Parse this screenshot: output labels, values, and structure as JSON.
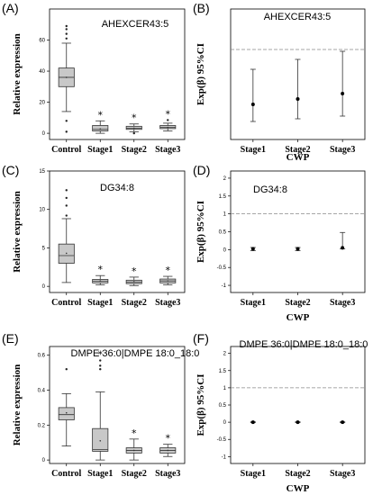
{
  "chart_data": [
    {
      "panel": "(A)",
      "type": "box",
      "title": "AHEXCER43:5",
      "xlabel": "",
      "ylabel": "Relative expression",
      "ylim": [
        -4,
        80
      ],
      "yticks": [
        0,
        20,
        40,
        60
      ],
      "categories": [
        "Control",
        "Stage1",
        "Stage2",
        "Stage3"
      ],
      "boxes": [
        {
          "min": 14,
          "q1": 30,
          "median": 36,
          "q3": 42,
          "max": 58,
          "mean": 36,
          "outliers": [
            1,
            8,
            61,
            64,
            67,
            69
          ],
          "star": ""
        },
        {
          "min": 0,
          "q1": 1.5,
          "median": 2.5,
          "q3": 5,
          "max": 8,
          "mean": 2.8,
          "outliers": [],
          "star": "*"
        },
        {
          "min": 1,
          "q1": 2.5,
          "median": 3.3,
          "q3": 4.5,
          "max": 6,
          "mean": 3.3,
          "outliers": [
            0
          ],
          "star": "*"
        },
        {
          "min": 1.5,
          "q1": 3,
          "median": 3.8,
          "q3": 5,
          "max": 6.5,
          "mean": 3.8,
          "outliers": [
            8.5
          ],
          "star": "*"
        }
      ]
    },
    {
      "panel": "(B)",
      "type": "errorbar",
      "title": "AHEXCER43:5",
      "xlabel": "CWP",
      "ylabel": "Exp(β) 95%CI",
      "ylim": [
        0,
        1.45
      ],
      "yticks": [],
      "refline": 1,
      "categories": [
        "Stage1",
        "Stage2",
        "Stage3"
      ],
      "points": [
        {
          "est": 0.39,
          "lo": 0.2,
          "hi": 0.78
        },
        {
          "est": 0.45,
          "lo": 0.23,
          "hi": 0.89
        },
        {
          "est": 0.51,
          "lo": 0.26,
          "hi": 0.98
        }
      ]
    },
    {
      "panel": "(C)",
      "type": "box",
      "title": "DG34:8",
      "xlabel": "",
      "ylabel": "Relative expression",
      "ylim": [
        -0.8,
        15
      ],
      "yticks": [
        0,
        5,
        10,
        15
      ],
      "categories": [
        "Control",
        "Stage1",
        "Stage2",
        "Stage3"
      ],
      "boxes": [
        {
          "min": 0.5,
          "q1": 3,
          "median": 4,
          "q3": 5.5,
          "max": 8.8,
          "mean": 4.3,
          "outliers": [
            9.2,
            10.5,
            11.5,
            12.5
          ],
          "star": ""
        },
        {
          "min": 0.2,
          "q1": 0.45,
          "median": 0.65,
          "q3": 0.9,
          "max": 1.4,
          "mean": 0.7,
          "outliers": [],
          "star": "*"
        },
        {
          "min": 0.1,
          "q1": 0.35,
          "median": 0.55,
          "q3": 0.8,
          "max": 1.2,
          "mean": 0.6,
          "outliers": [],
          "star": "*"
        },
        {
          "min": 0.2,
          "q1": 0.45,
          "median": 0.7,
          "q3": 0.95,
          "max": 1.3,
          "mean": 0.7,
          "outliers": [],
          "star": "*"
        }
      ]
    },
    {
      "panel": "(D)",
      "type": "errorbar",
      "title": "DG34:8",
      "xlabel": "CWP",
      "ylabel": "Exp(β) 95%CI",
      "ylim": [
        -1.2,
        2.2
      ],
      "yticks": [
        -1,
        -0.5,
        0,
        0.5,
        1,
        1.5,
        2
      ],
      "refline": 1,
      "categories": [
        "Stage1",
        "Stage2",
        "Stage3"
      ],
      "points": [
        {
          "est": 0.02,
          "lo": -0.03,
          "hi": 0.06
        },
        {
          "est": 0.02,
          "lo": -0.03,
          "hi": 0.06
        },
        {
          "est": 0.05,
          "lo": 0.02,
          "hi": 0.48
        }
      ]
    },
    {
      "panel": "(E)",
      "type": "box",
      "title": "DMPE 36:0|DMPE 18:0_18:0",
      "xlabel": "",
      "ylabel": "Relative expression",
      "ylim": [
        -0.02,
        0.65
      ],
      "yticks": [
        0,
        0.2,
        0.4,
        0.6
      ],
      "categories": [
        "Control",
        "Stage1",
        "Stage2",
        "Stage3"
      ],
      "boxes": [
        {
          "min": 0.08,
          "q1": 0.23,
          "median": 0.26,
          "q3": 0.3,
          "max": 0.38,
          "mean": 0.27,
          "outliers": [
            0.52
          ],
          "star": ""
        },
        {
          "min": 0.0,
          "q1": 0.05,
          "median": 0.06,
          "q3": 0.18,
          "max": 0.39,
          "mean": 0.11,
          "outliers": [
            0.52,
            0.54,
            0.57
          ],
          "star": "*"
        },
        {
          "min": 0.0,
          "q1": 0.04,
          "median": 0.055,
          "q3": 0.07,
          "max": 0.12,
          "mean": 0.055,
          "outliers": [],
          "star": "*"
        },
        {
          "min": 0.02,
          "q1": 0.04,
          "median": 0.055,
          "q3": 0.07,
          "max": 0.09,
          "mean": 0.055,
          "outliers": [],
          "star": "*"
        }
      ]
    },
    {
      "panel": "(F)",
      "type": "errorbar",
      "title": "DMPE 36:0|DMPE 18:0_18:0",
      "xlabel": "CWP",
      "ylabel": "Exp(β) 95%CI",
      "ylim": [
        -1.2,
        2.2
      ],
      "yticks": [
        -1,
        -0.5,
        0,
        0.5,
        1,
        1.5,
        2
      ],
      "refline": 1,
      "categories": [
        "Stage1",
        "Stage2",
        "Stage3"
      ],
      "points": [
        {
          "est": 0.0,
          "lo": -0.01,
          "hi": 0.01
        },
        {
          "est": 0.0,
          "lo": -0.01,
          "hi": 0.01
        },
        {
          "est": 0.0,
          "lo": -0.01,
          "hi": 0.01
        }
      ]
    }
  ]
}
